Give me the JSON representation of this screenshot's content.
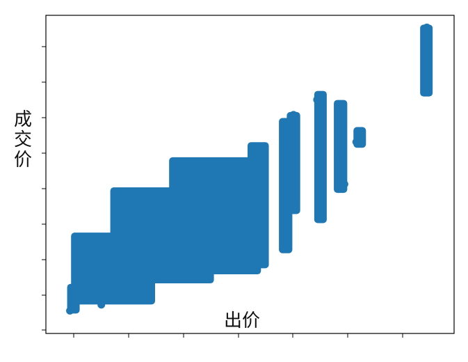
{
  "chart_data": {
    "type": "scatter",
    "title": "",
    "xlabel": "出价",
    "ylabel": "成交价",
    "x_ticks_shown": false,
    "y_ticks_shown": false,
    "grid": false,
    "marker_color": "#1f77b4",
    "x_range": [
      0,
      1
    ],
    "y_range": [
      0,
      1
    ],
    "clusters": [
      {
        "x": [
          0.04,
          0.05
        ],
        "y": [
          0.05,
          0.13
        ]
      },
      {
        "x": [
          0.05,
          0.25
        ],
        "y": [
          0.08,
          0.3
        ]
      },
      {
        "x": [
          0.15,
          0.4
        ],
        "y": [
          0.15,
          0.45
        ]
      },
      {
        "x": [
          0.3,
          0.52
        ],
        "y": [
          0.18,
          0.55
        ]
      },
      {
        "x": [
          0.5,
          0.54
        ],
        "y": [
          0.2,
          0.6
        ]
      },
      {
        "x": [
          0.58,
          0.6
        ],
        "y": [
          0.25,
          0.68
        ]
      },
      {
        "x": [
          0.6,
          0.62
        ],
        "y": [
          0.38,
          0.7
        ]
      },
      {
        "x": [
          0.67,
          0.68
        ],
        "y": [
          0.35,
          0.77
        ]
      },
      {
        "x": [
          0.72,
          0.74
        ],
        "y": [
          0.45,
          0.74
        ]
      },
      {
        "x": [
          0.77,
          0.78
        ],
        "y": [
          0.6,
          0.65
        ]
      },
      {
        "x": [
          0.94,
          0.95
        ],
        "y": [
          0.77,
          0.99
        ]
      }
    ],
    "points": [
      {
        "x": 0.04,
        "y": 0.05
      },
      {
        "x": 0.05,
        "y": 0.11
      },
      {
        "x": 0.08,
        "y": 0.09
      },
      {
        "x": 0.1,
        "y": 0.12
      },
      {
        "x": 0.12,
        "y": 0.07
      },
      {
        "x": 0.14,
        "y": 0.16
      },
      {
        "x": 0.16,
        "y": 0.19
      },
      {
        "x": 0.18,
        "y": 0.14
      },
      {
        "x": 0.2,
        "y": 0.22
      },
      {
        "x": 0.22,
        "y": 0.26
      },
      {
        "x": 0.24,
        "y": 0.2
      },
      {
        "x": 0.26,
        "y": 0.28
      },
      {
        "x": 0.28,
        "y": 0.32
      },
      {
        "x": 0.3,
        "y": 0.24
      },
      {
        "x": 0.32,
        "y": 0.35
      },
      {
        "x": 0.34,
        "y": 0.38
      },
      {
        "x": 0.36,
        "y": 0.3
      },
      {
        "x": 0.38,
        "y": 0.41
      },
      {
        "x": 0.4,
        "y": 0.44
      },
      {
        "x": 0.42,
        "y": 0.34
      },
      {
        "x": 0.44,
        "y": 0.48
      },
      {
        "x": 0.46,
        "y": 0.42
      },
      {
        "x": 0.48,
        "y": 0.52
      },
      {
        "x": 0.5,
        "y": 0.39
      },
      {
        "x": 0.52,
        "y": 0.56
      },
      {
        "x": 0.53,
        "y": 0.47
      },
      {
        "x": 0.59,
        "y": 0.65
      },
      {
        "x": 0.6,
        "y": 0.48
      },
      {
        "x": 0.61,
        "y": 0.7
      },
      {
        "x": 0.61,
        "y": 0.41
      },
      {
        "x": 0.67,
        "y": 0.75
      },
      {
        "x": 0.68,
        "y": 0.55
      },
      {
        "x": 0.68,
        "y": 0.36
      },
      {
        "x": 0.73,
        "y": 0.73
      },
      {
        "x": 0.73,
        "y": 0.56
      },
      {
        "x": 0.74,
        "y": 0.47
      },
      {
        "x": 0.77,
        "y": 0.61
      },
      {
        "x": 0.78,
        "y": 0.64
      },
      {
        "x": 0.95,
        "y": 0.99
      },
      {
        "x": 0.95,
        "y": 0.9
      },
      {
        "x": 0.95,
        "y": 0.8
      }
    ]
  }
}
